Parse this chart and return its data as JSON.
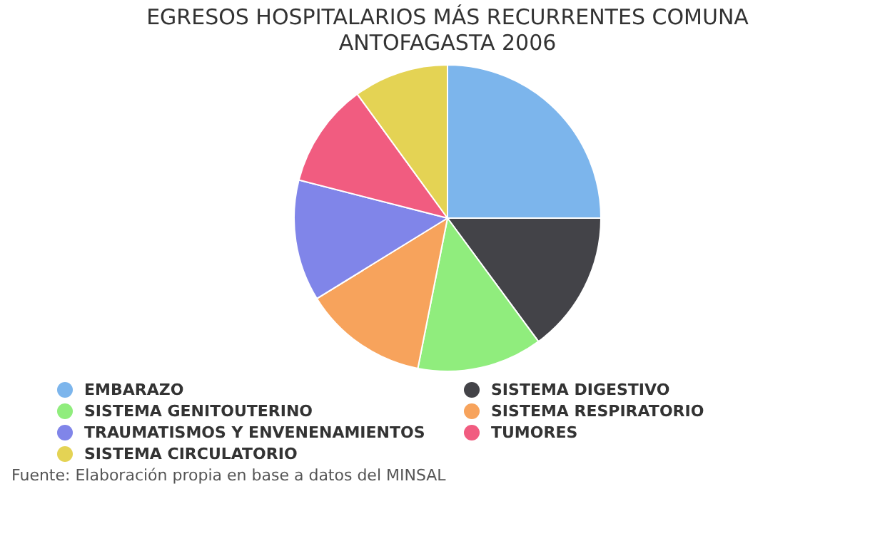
{
  "chart_data": {
    "type": "pie",
    "title": "EGRESOS HOSPITALARIOS MÁS RECURRENTES COMUNA ANTOFAGASTA 2006",
    "categories": [
      "EMBARAZO",
      "SISTEMA DIGESTIVO",
      "SISTEMA GENITOUTERINO",
      "SISTEMA RESPIRATORIO",
      "TRAUMATISMOS Y ENVENENAMIENTOS",
      "TUMORES",
      "SISTEMA CIRCULATORIO"
    ],
    "values": [
      25,
      14.9,
      13.2,
      13.1,
      12.8,
      11,
      10
    ],
    "colors": [
      "#7cb5ec",
      "#434348",
      "#90ed7d",
      "#f7a35c",
      "#8085e9",
      "#f15c80",
      "#e4d354"
    ],
    "legend": "bottom",
    "annotations": [
      "Fuente: Elaboración propia en base a datos del MINSAL"
    ]
  }
}
